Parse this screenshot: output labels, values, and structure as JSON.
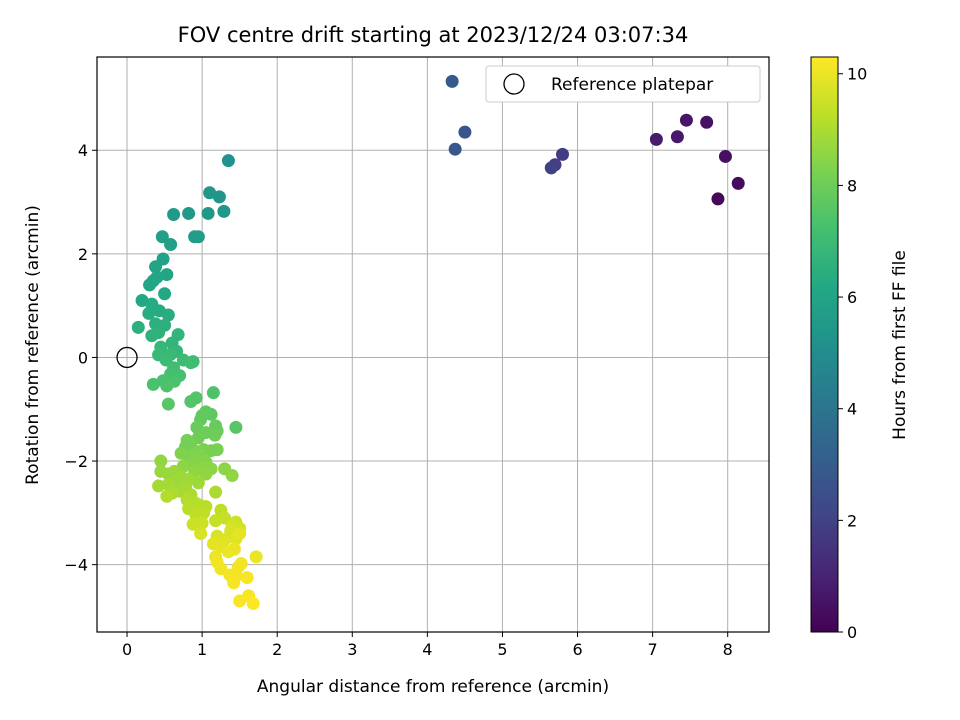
{
  "chart_data": {
    "type": "scatter",
    "title": "FOV centre drift starting at 2023/12/24 03:07:34",
    "xlabel": "Angular distance from reference (arcmin)",
    "ylabel": "Rotation from reference (arcmin)",
    "xlim": [
      -0.4,
      8.55
    ],
    "ylim": [
      -5.3,
      5.8
    ],
    "xticks": [
      0,
      1,
      2,
      3,
      4,
      5,
      6,
      7,
      8
    ],
    "yticks": [
      -4,
      -2,
      0,
      2,
      4
    ],
    "xtick_labels": [
      "0",
      "1",
      "2",
      "3",
      "4",
      "5",
      "6",
      "7",
      "8"
    ],
    "ytick_labels": [
      "−4",
      "−2",
      "0",
      "2",
      "4"
    ],
    "grid": true,
    "colormap": "viridis",
    "colorbar": {
      "label": "Hours from first FF file",
      "range": [
        0,
        10.3
      ],
      "ticks": [
        0,
        2,
        4,
        6,
        8,
        10
      ],
      "tick_labels": [
        "0",
        "2",
        "4",
        "6",
        "8",
        "10"
      ]
    },
    "legend": {
      "position": "top-right",
      "entries": [
        {
          "label": "Reference platepar",
          "marker": "open-circle"
        }
      ]
    },
    "reference_point": {
      "x": 0,
      "y": 0
    },
    "points": [
      [
        7.87,
        3.06,
        0.2
      ],
      [
        8.14,
        3.36,
        0.3
      ],
      [
        7.97,
        3.88,
        0.4
      ],
      [
        7.72,
        4.54,
        0.5
      ],
      [
        7.45,
        4.58,
        0.6
      ],
      [
        7.33,
        4.26,
        0.7
      ],
      [
        7.05,
        4.21,
        0.8
      ],
      [
        5.8,
        3.92,
        1.8
      ],
      [
        5.7,
        3.72,
        1.9
      ],
      [
        5.65,
        3.66,
        2.0
      ],
      [
        4.5,
        4.35,
        2.7
      ],
      [
        4.37,
        4.02,
        2.8
      ],
      [
        4.33,
        5.33,
        2.9
      ],
      [
        1.35,
        3.8,
        5.2
      ],
      [
        1.23,
        3.1,
        5.3
      ],
      [
        1.1,
        3.18,
        5.4
      ],
      [
        1.29,
        2.82,
        5.4
      ],
      [
        1.08,
        2.78,
        5.5
      ],
      [
        0.82,
        2.78,
        5.5
      ],
      [
        0.62,
        2.76,
        5.6
      ],
      [
        0.9,
        2.33,
        5.7
      ],
      [
        0.95,
        2.33,
        5.7
      ],
      [
        0.47,
        2.33,
        5.8
      ],
      [
        0.58,
        2.18,
        5.8
      ],
      [
        0.48,
        1.9,
        5.9
      ],
      [
        0.38,
        1.75,
        6.0
      ],
      [
        0.53,
        1.6,
        6.0
      ],
      [
        0.4,
        1.55,
        6.1
      ],
      [
        0.3,
        1.4,
        6.1
      ],
      [
        0.35,
        1.48,
        6.1
      ],
      [
        0.5,
        1.23,
        6.2
      ],
      [
        0.2,
        1.1,
        6.2
      ],
      [
        0.33,
        1.03,
        6.3
      ],
      [
        0.43,
        0.9,
        6.3
      ],
      [
        0.29,
        0.85,
        6.4
      ],
      [
        0.55,
        0.82,
        6.4
      ],
      [
        0.38,
        0.65,
        6.5
      ],
      [
        0.5,
        0.62,
        6.5
      ],
      [
        0.15,
        0.58,
        6.5
      ],
      [
        0.42,
        0.48,
        6.6
      ],
      [
        0.33,
        0.42,
        6.6
      ],
      [
        0.68,
        0.44,
        6.7
      ],
      [
        0.6,
        0.28,
        6.7
      ],
      [
        0.45,
        0.2,
        6.8
      ],
      [
        0.66,
        0.12,
        6.8
      ],
      [
        0.58,
        0.06,
        6.9
      ],
      [
        0.42,
        0.05,
        6.9
      ],
      [
        0.52,
        -0.05,
        7.0
      ],
      [
        0.75,
        -0.05,
        7.0
      ],
      [
        0.88,
        -0.08,
        7.1
      ],
      [
        0.85,
        -0.1,
        7.1
      ],
      [
        0.62,
        -0.2,
        7.1
      ],
      [
        0.58,
        -0.32,
        7.2
      ],
      [
        0.7,
        -0.35,
        7.2
      ],
      [
        0.48,
        -0.45,
        7.3
      ],
      [
        0.63,
        -0.46,
        7.3
      ],
      [
        0.35,
        -0.52,
        7.3
      ],
      [
        0.53,
        -0.55,
        7.4
      ],
      [
        1.15,
        -0.68,
        7.4
      ],
      [
        0.92,
        -0.78,
        7.5
      ],
      [
        0.85,
        -0.85,
        7.5
      ],
      [
        0.55,
        -0.9,
        7.6
      ],
      [
        1.45,
        -1.35,
        7.6
      ],
      [
        1.05,
        -1.05,
        7.7
      ],
      [
        1.12,
        -1.1,
        7.7
      ],
      [
        1.0,
        -1.12,
        7.8
      ],
      [
        0.98,
        -1.2,
        7.8
      ],
      [
        1.18,
        -1.32,
        7.9
      ],
      [
        0.93,
        -1.35,
        7.9
      ],
      [
        1.2,
        -1.42,
        7.9
      ],
      [
        1.05,
        -1.45,
        8.0
      ],
      [
        1.17,
        -1.5,
        8.0
      ],
      [
        0.95,
        -1.55,
        8.0
      ],
      [
        0.8,
        -1.6,
        8.1
      ],
      [
        0.85,
        -1.68,
        8.1
      ],
      [
        0.78,
        -1.72,
        8.1
      ],
      [
        1.02,
        -1.78,
        8.2
      ],
      [
        1.2,
        -1.78,
        8.2
      ],
      [
        1.12,
        -1.8,
        8.2
      ],
      [
        0.95,
        -1.82,
        8.3
      ],
      [
        0.72,
        -1.85,
        8.3
      ],
      [
        0.82,
        -1.92,
        8.3
      ],
      [
        0.92,
        -1.98,
        8.4
      ],
      [
        1.05,
        -2.02,
        8.4
      ],
      [
        0.85,
        -2.05,
        8.4
      ],
      [
        0.75,
        -2.1,
        8.5
      ],
      [
        1.0,
        -2.12,
        8.5
      ],
      [
        1.12,
        -2.15,
        8.5
      ],
      [
        1.3,
        -2.15,
        8.5
      ],
      [
        0.45,
        -2.0,
        8.6
      ],
      [
        0.9,
        -2.2,
        8.6
      ],
      [
        1.05,
        -2.25,
        8.6
      ],
      [
        1.4,
        -2.28,
        8.6
      ],
      [
        0.63,
        -2.2,
        8.7
      ],
      [
        0.55,
        -2.25,
        8.7
      ],
      [
        0.45,
        -2.2,
        8.7
      ],
      [
        0.72,
        -2.3,
        8.8
      ],
      [
        0.82,
        -2.35,
        8.8
      ],
      [
        0.65,
        -2.4,
        8.8
      ],
      [
        0.95,
        -2.42,
        8.8
      ],
      [
        0.55,
        -2.45,
        8.9
      ],
      [
        0.42,
        -2.48,
        8.9
      ],
      [
        0.78,
        -2.5,
        8.9
      ],
      [
        0.7,
        -2.58,
        8.9
      ],
      [
        0.6,
        -2.62,
        9.0
      ],
      [
        0.85,
        -2.65,
        9.0
      ],
      [
        1.18,
        -2.6,
        9.0
      ],
      [
        0.53,
        -2.68,
        9.1
      ],
      [
        0.8,
        -2.75,
        9.1
      ],
      [
        0.9,
        -2.8,
        9.1
      ],
      [
        0.97,
        -2.85,
        9.2
      ],
      [
        1.05,
        -2.88,
        9.2
      ],
      [
        0.82,
        -2.92,
        9.2
      ],
      [
        1.25,
        -2.95,
        9.3
      ],
      [
        1.02,
        -3.0,
        9.3
      ],
      [
        0.92,
        -3.05,
        9.3
      ],
      [
        1.3,
        -3.1,
        9.4
      ],
      [
        1.18,
        -3.15,
        9.4
      ],
      [
        1.45,
        -3.18,
        9.5
      ],
      [
        1.0,
        -3.2,
        9.5
      ],
      [
        0.88,
        -3.22,
        9.5
      ],
      [
        1.4,
        -3.25,
        9.6
      ],
      [
        1.5,
        -3.3,
        9.6
      ],
      [
        1.38,
        -3.35,
        9.7
      ],
      [
        0.98,
        -3.4,
        9.7
      ],
      [
        1.2,
        -3.45,
        9.7
      ],
      [
        1.3,
        -3.52,
        9.8
      ],
      [
        1.45,
        -3.5,
        9.8
      ],
      [
        1.5,
        -3.4,
        9.9
      ],
      [
        1.15,
        -3.6,
        9.9
      ],
      [
        1.25,
        -3.65,
        9.9
      ],
      [
        1.43,
        -3.7,
        10.0
      ],
      [
        1.35,
        -3.75,
        10.0
      ],
      [
        1.18,
        -3.85,
        10.0
      ],
      [
        1.72,
        -3.85,
        10.0
      ],
      [
        1.2,
        -3.95,
        10.1
      ],
      [
        1.52,
        -3.98,
        10.1
      ],
      [
        1.48,
        -4.05,
        10.1
      ],
      [
        1.25,
        -4.08,
        10.1
      ],
      [
        1.37,
        -4.2,
        10.1
      ],
      [
        1.45,
        -4.22,
        10.1
      ],
      [
        1.6,
        -4.25,
        10.2
      ],
      [
        1.42,
        -4.35,
        10.2
      ],
      [
        1.62,
        -4.6,
        10.2
      ],
      [
        1.5,
        -4.7,
        10.2
      ],
      [
        1.68,
        -4.75,
        10.3
      ]
    ]
  }
}
